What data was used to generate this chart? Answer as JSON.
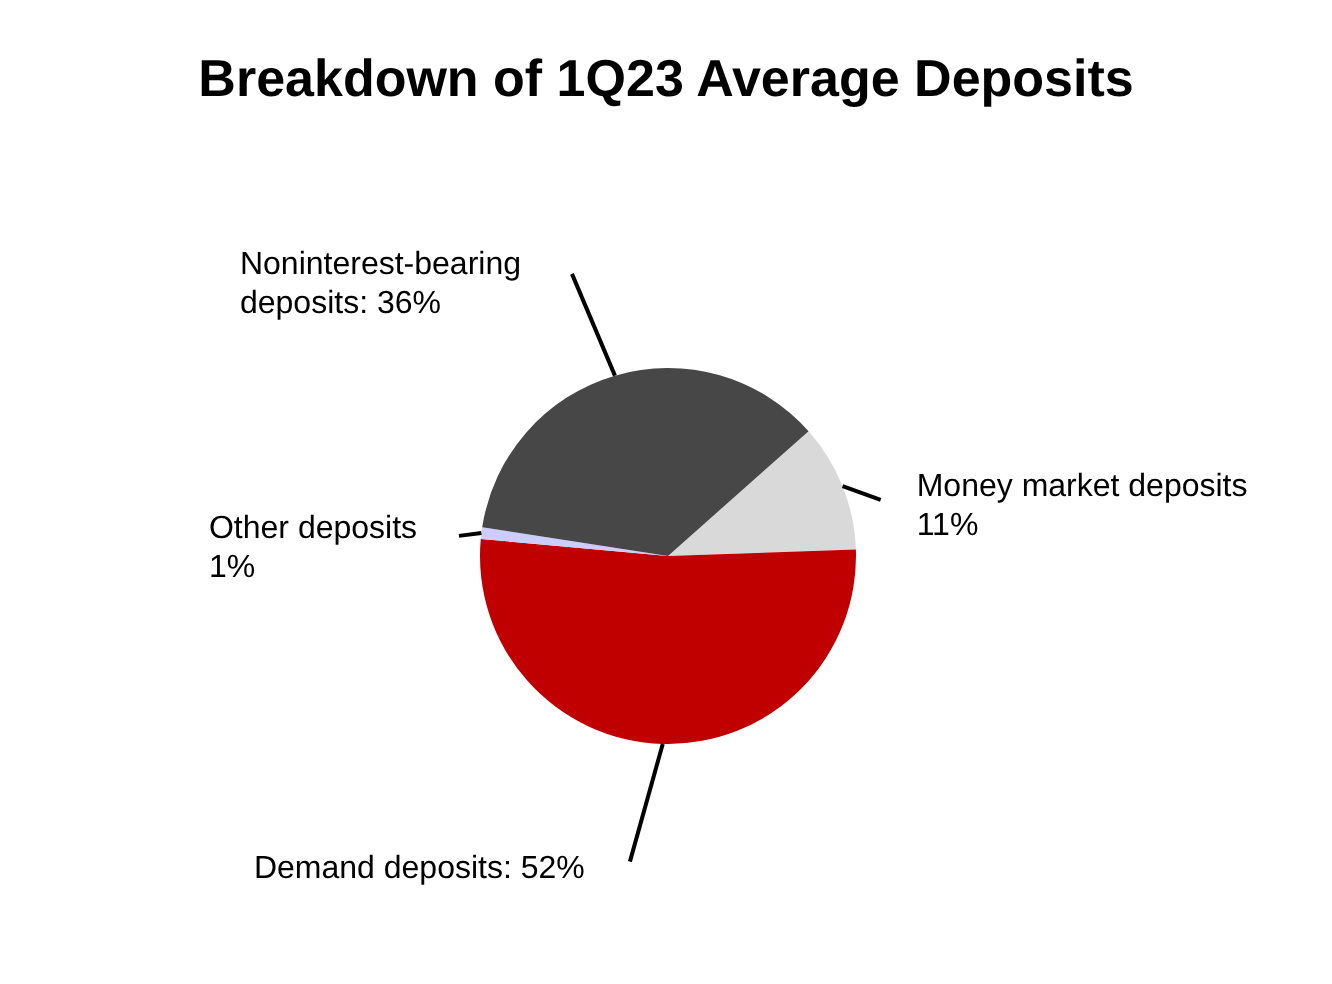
{
  "chart_data": {
    "type": "pie",
    "title": "Breakdown of 1Q23 Average Deposits",
    "categories": [
      "Money market deposits",
      "Demand deposits",
      "Other deposits",
      "Noninterest-bearing deposits"
    ],
    "values": [
      11,
      52,
      1,
      36
    ],
    "value_labels": [
      "11%",
      "52%",
      "1%",
      "36%"
    ],
    "colors": [
      "#d9d9d9",
      "#c00000",
      "#ccccff",
      "#474747"
    ]
  }
}
